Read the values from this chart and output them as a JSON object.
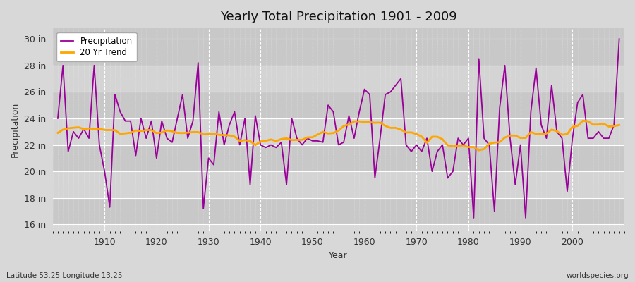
{
  "title": "Yearly Total Precipitation 1901 - 2009",
  "xlabel": "Year",
  "ylabel": "Precipitation",
  "bottom_left_label": "Latitude 53.25 Longitude 13.25",
  "bottom_right_label": "worldspecies.org",
  "precip_color": "#990099",
  "trend_color": "#FFA500",
  "bg_light": "#DCDCDC",
  "bg_dark": "#C8C8C8",
  "ylim": [
    15.5,
    30.8
  ],
  "ytick_labels": [
    "16 in",
    "18 in",
    "20 in",
    "22 in",
    "24 in",
    "26 in",
    "28 in",
    "30 in"
  ],
  "ytick_values": [
    16,
    18,
    20,
    22,
    24,
    26,
    28,
    30
  ],
  "xlim": [
    1900,
    2010
  ],
  "xticks": [
    1910,
    1920,
    1930,
    1940,
    1950,
    1960,
    1970,
    1980,
    1990,
    2000
  ],
  "years": [
    1901,
    1902,
    1903,
    1904,
    1905,
    1906,
    1907,
    1908,
    1909,
    1910,
    1911,
    1912,
    1913,
    1914,
    1915,
    1916,
    1917,
    1918,
    1919,
    1920,
    1921,
    1922,
    1923,
    1924,
    1925,
    1926,
    1927,
    1928,
    1929,
    1930,
    1931,
    1932,
    1933,
    1934,
    1935,
    1936,
    1937,
    1938,
    1939,
    1940,
    1941,
    1942,
    1943,
    1944,
    1945,
    1946,
    1947,
    1948,
    1949,
    1950,
    1951,
    1952,
    1953,
    1954,
    1955,
    1956,
    1957,
    1958,
    1959,
    1960,
    1961,
    1962,
    1963,
    1964,
    1965,
    1966,
    1967,
    1968,
    1969,
    1970,
    1971,
    1972,
    1973,
    1974,
    1975,
    1976,
    1977,
    1978,
    1979,
    1980,
    1981,
    1982,
    1983,
    1984,
    1985,
    1986,
    1987,
    1988,
    1989,
    1990,
    1991,
    1992,
    1993,
    1994,
    1995,
    1996,
    1997,
    1998,
    1999,
    2000,
    2001,
    2002,
    2003,
    2004,
    2005,
    2006,
    2007,
    2008,
    2009
  ],
  "precip": [
    24.0,
    28.0,
    21.5,
    23.0,
    22.5,
    23.2,
    22.5,
    28.0,
    22.0,
    20.0,
    17.3,
    25.8,
    24.5,
    23.8,
    23.8,
    21.2,
    24.0,
    22.5,
    23.8,
    21.0,
    23.8,
    22.5,
    22.2,
    24.0,
    25.8,
    22.5,
    23.8,
    28.2,
    17.2,
    21.0,
    20.5,
    24.5,
    22.0,
    23.5,
    24.5,
    22.0,
    24.0,
    19.0,
    24.2,
    22.0,
    21.8,
    22.0,
    21.8,
    22.2,
    19.0,
    24.0,
    22.5,
    22.0,
    22.5,
    22.3,
    22.3,
    22.2,
    25.0,
    24.5,
    22.0,
    22.2,
    24.2,
    22.5,
    24.5,
    26.2,
    25.8,
    19.5,
    22.5,
    25.8,
    26.0,
    26.5,
    27.0,
    22.0,
    21.5,
    22.0,
    21.5,
    22.5,
    20.0,
    21.5,
    22.0,
    19.5,
    20.0,
    22.5,
    22.0,
    22.5,
    16.5,
    28.5,
    22.5,
    22.0,
    17.0,
    24.8,
    28.0,
    22.5,
    19.0,
    22.0,
    16.5,
    24.5,
    27.8,
    23.5,
    22.5,
    26.5,
    23.0,
    22.5,
    18.5,
    22.5,
    25.2,
    25.8,
    22.5,
    22.5,
    23.0,
    22.5,
    22.5,
    23.5,
    30.0
  ],
  "trend_window": 20
}
